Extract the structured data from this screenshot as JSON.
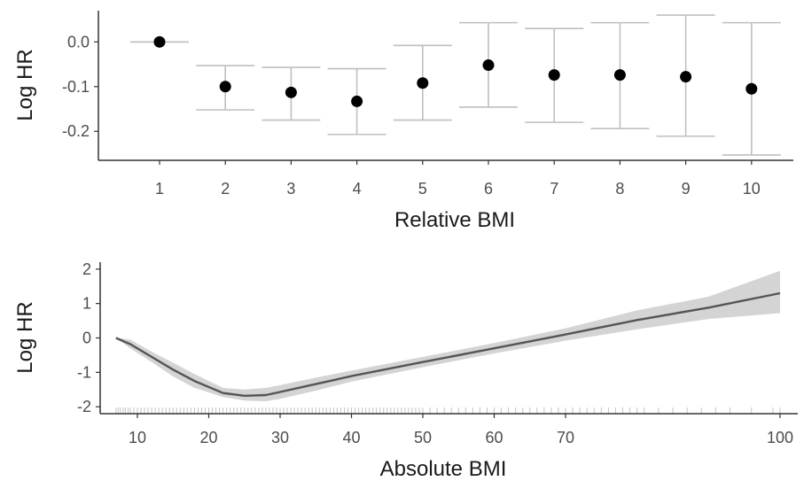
{
  "chart_data": [
    {
      "type": "scatter",
      "subtype": "point-with-errorbars",
      "xlabel": "Relative BMI",
      "ylabel": "Log HR",
      "categories": [
        "1",
        "2",
        "3",
        "4",
        "5",
        "6",
        "7",
        "8",
        "9",
        "10"
      ],
      "values": [
        0.0,
        -0.1,
        -0.113,
        -0.133,
        -0.092,
        -0.052,
        -0.074,
        -0.074,
        -0.078,
        -0.105
      ],
      "lower": [
        0.0,
        -0.152,
        -0.175,
        -0.207,
        -0.175,
        -0.146,
        -0.18,
        -0.194,
        -0.211,
        -0.253
      ],
      "upper": [
        0.0,
        -0.053,
        -0.057,
        -0.06,
        -0.008,
        0.043,
        0.03,
        0.043,
        0.06,
        0.043
      ],
      "yticks": [
        "0.0",
        "-0.1",
        "-0.2"
      ],
      "ytick_values": [
        0.0,
        -0.1,
        -0.2
      ],
      "ylim": [
        -0.265,
        0.07
      ],
      "grid": false,
      "colors": {
        "point": "#000000",
        "errorbar": "#bfbfbf",
        "axis": "#333333"
      }
    },
    {
      "type": "line",
      "subtype": "line-with-confidence-band-and-rug",
      "xlabel": "Absolute BMI",
      "ylabel": "Log HR",
      "xticks": [
        "10",
        "20",
        "30",
        "40",
        "50",
        "60",
        "70",
        "100"
      ],
      "xtick_values": [
        10,
        20,
        30,
        40,
        50,
        60,
        70,
        100
      ],
      "yticks": [
        "2",
        "1",
        "0",
        "-1",
        "-2"
      ],
      "ytick_values": [
        2,
        1,
        0,
        -1,
        -2
      ],
      "xlim": [
        4.5,
        103
      ],
      "ylim": [
        -2.2,
        2.2
      ],
      "x": [
        7,
        9,
        12,
        15,
        18,
        22,
        25,
        28,
        30,
        35,
        40,
        50,
        60,
        70,
        80,
        90,
        100
      ],
      "y": [
        0,
        -0.18,
        -0.55,
        -0.92,
        -1.25,
        -1.6,
        -1.68,
        -1.66,
        -1.57,
        -1.34,
        -1.11,
        -0.7,
        -0.3,
        0.1,
        0.52,
        0.88,
        1.3
      ],
      "lower": [
        0,
        -0.3,
        -0.7,
        -1.12,
        -1.45,
        -1.72,
        -1.82,
        -1.84,
        -1.77,
        -1.53,
        -1.27,
        -0.85,
        -0.45,
        -0.08,
        0.25,
        0.55,
        0.72
      ],
      "upper": [
        0,
        -0.05,
        -0.4,
        -0.72,
        -1.05,
        -1.45,
        -1.5,
        -1.45,
        -1.37,
        -1.15,
        -0.95,
        -0.55,
        -0.15,
        0.28,
        0.8,
        1.2,
        1.95
      ],
      "rug_x": [
        7,
        7.3,
        7.6,
        8,
        8.3,
        8.7,
        9,
        9.5,
        10,
        10.5,
        11,
        11.5,
        12,
        12.5,
        13,
        13.5,
        14,
        14.5,
        15,
        15.5,
        16,
        16.5,
        17,
        17.5,
        18,
        18.5,
        19,
        19.5,
        20,
        20.5,
        21,
        21.5,
        22,
        22.5,
        23,
        23.5,
        24,
        24.5,
        25,
        25.5,
        26,
        26.5,
        27,
        27.5,
        28,
        28.5,
        29,
        29.5,
        30,
        30.5,
        31,
        31.5,
        32,
        32.5,
        33,
        33.5,
        34,
        34.5,
        35,
        35.5,
        36,
        36.5,
        37,
        37.5,
        38,
        38.5,
        39,
        39.5,
        40,
        40.5,
        41,
        41.5,
        42,
        42.5,
        43,
        43.5,
        44,
        44.5,
        45,
        45.5,
        46,
        46.5,
        47,
        47.5,
        48,
        48.5,
        49,
        49.5,
        50,
        51,
        52,
        53,
        54,
        55,
        56,
        57,
        58,
        59,
        60,
        61,
        62,
        63,
        64,
        65,
        66,
        67,
        68,
        69,
        70,
        71,
        72,
        73,
        74,
        75,
        76,
        77,
        78,
        79,
        80,
        81,
        83,
        85,
        87,
        89,
        91,
        93,
        96,
        99,
        100
      ],
      "grid": false,
      "colors": {
        "line": "#555555",
        "band": "#d4d4d4",
        "rug": "#c4c4c4",
        "axis": "#333333"
      }
    }
  ]
}
